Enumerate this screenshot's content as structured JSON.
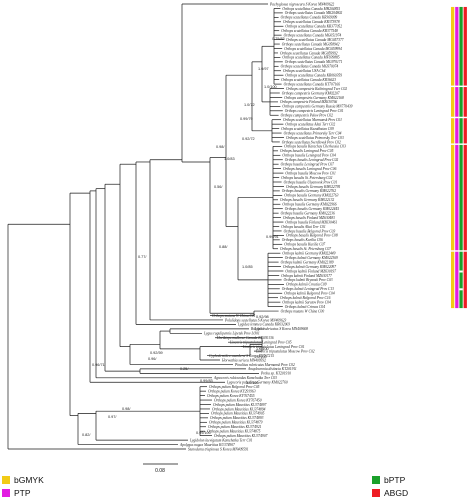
{
  "tree": {
    "tips": [
      "Pachyglossa nigroseura S Korea MN409622",
      "Orthops scutellatus Canada MH204855",
      "Orthops scutellatus Canada MK204802",
      "Orthops scutellatus Canada KR369099",
      "Orthops scutellatus Canada KR373978",
      "Orthops scutellatus Canada KR377052",
      "Orthops scutellatus Canada KR377548",
      "Orthops scutellatus Canada MG051974",
      "Orthops scutellatus Canada MG057377",
      "Orthops scutellatus Canada MG058942",
      "Orthops scutellatus Canada MG059994",
      "Orthops scutellatus Canada MG059992",
      "Orthops scutellatus Canada MF939885",
      "Orthops scutellatus Canada MG970171",
      "Orthops scutellatus Canada MG970074",
      "Orthops scutellatus USA Ch4",
      "Orthops scutellatus Canada KR060359",
      "Orthops scutellatus Canada KR36623",
      "Orthops scutellatus Canada KT707166",
      "Orthops campestris Kaliningrad Tver C02",
      "Orthops campestris Germany KM02207",
      "Orthops campestris Germany KM022168",
      "Orthops campestris Finland MZ630766",
      "Orthops campestris Germany Russia MN770439",
      "Orthops campestris Leningrad Prov C01",
      "Orthops campestris Pskov Prov C02",
      "Orthops scutellatus Murmansk Prov C01",
      "Orthops scutellatus Altai Terr C02",
      "Orthops scutellatus Kazakhstan C09",
      "Orthops scutellatus Primorsky Terr C04",
      "Orthops scutellatus Primorsky Terr C03",
      "Orthops scutellatus Sverdlovsk Prov C02",
      "Orthops basalis Karachay Cherkessia C03",
      "Orthops basalis Leningrad Prov C05",
      "Orthops basalis Leningrad Prov C04",
      "Orthops basalis Leningrad Prov C02",
      "Orthops basalis Leningrad Prov C07",
      "Orthops basalis Leningrad Prov C06",
      "Orthops basalis Moscow Prov C01",
      "Orthops basalis St. Petersburg C02",
      "Orthops basalis Ulyanovsk Prov C01",
      "Orthops basalis Germany KM022795",
      "Orthops basalis Germany KM022762",
      "Orthops basalis Germany KM022763",
      "Orthops basalis Germany KM022132",
      "Orthops basalis Germany KM022966",
      "Orthops basalis Germany KM022445",
      "Orthops basalis Germany KM022236",
      "Orthops basalis Finland MZ630483",
      "Orthops basalis Finland MZ630461",
      "Orthops basalis Altai Terr C01",
      "Orthops basalis Belgorod Prov C03",
      "Orthops basalis Belgorod Prov C08",
      "Orthops basalis Kurilia C06",
      "Orthops basalis Kurilia C07",
      "Orthops basalis St. Petersburg C07",
      "Orthops kalmii Germany KM022449",
      "Orthops kalmii Germany KM022369",
      "Orthops kalmii Germany KM022189",
      "Orthops kalmii Germany KM022097",
      "Orthops kalmii Finland MZ630197",
      "Orthops kalmii Finland MZ630177",
      "Orthops kalmii Bryansk Prov C03",
      "Orthops kalmii Croatia C09",
      "Orthops kalmii Leningrad Prov C13",
      "Orthops kalmii Belgorod Prov C04",
      "Orthops kalmii Belgorod Prov C16",
      "Orthops kalmii Saratov Prov C04",
      "Orthops kalmii Crimea C04",
      "Orthops mutans W China C00",
      "Orthops mutans W China C01",
      "Polulidops scutellatus S Korea MN409623",
      "Lygidea lemmea Canada KR032003",
      "Bolygus rubricatus S Korea MN409608",
      "Lygus rugulipennis Lipetsk Prov LO01",
      "Horikiops mullerae Canada KR030136",
      "Liocoris tripustulatus Leningrad Prov C05",
      "Liocoris tripustulatus Leningrad Prov C01",
      "Liocoris tripustulatus Moscow Prov C02",
      "Cyphodemidea saundersi S Korea KY767215",
      "Horwathia sericea MN409592",
      "Pinalitus rubricatus Murmansk Prov C02",
      "Anapleuronia distincta KT201911",
      "Proba sp. KT201910",
      "Agnocoris rubicundus Kamchatka Terr C03",
      "Lygocoris pabulinus Germany KM022760",
      "Orthops pulum Belgorod Prov C05",
      "Orthops pulum Korea KY291963",
      "Orthops pulum Korea KY767455",
      "Orthops pulum Korea KY767450",
      "Orthops pulum Mauritius KU374897",
      "Orthops pulum Mauritius KU374894",
      "Orthops pulum Mauritius KU374905",
      "Orthops pulum Mauritius KU374893",
      "Orthops pulum Mauritius KU374879",
      "Orthops pulum Mauritius KU374921",
      "Orthops pulum Mauritius KU374875",
      "Orthops pulum Mauritius KU374907",
      "Lygidolon laevigatum Kamchatka Terr C01",
      "Apolygus nugax Mauritius KU374907",
      "Stenodema trispinosa S Korea MN409591"
    ],
    "supports": [
      "0.75/83",
      "1.0/97",
      "1.0/100",
      "1.0/72",
      "0.99/79",
      "0.92/72",
      "0.98/",
      "1.0/83",
      "0.56/",
      "0.99/91",
      "1.0/85",
      "0.88/",
      "0.92/98",
      "1.0/94",
      "1.0/100",
      "0.77/",
      "0.92/59",
      "0.25/",
      "1.0/100",
      "0.99/83",
      "1.0/100",
      "0.96/",
      "0.96/71",
      "0.98/",
      "0.97/",
      "0.82/",
      "0.99/100"
    ]
  },
  "scale": {
    "label": "0.08"
  },
  "legend": {
    "items": [
      {
        "label": "bGMYK",
        "color": "#f2cb16"
      },
      {
        "label": "bPTP",
        "color": "#1aa02a"
      },
      {
        "label": "PTP",
        "color": "#e21ce2"
      },
      {
        "label": "ABGD",
        "color": "#ee1c24"
      }
    ]
  },
  "colors": {
    "bGMYK": "#f2cb16",
    "bPTP": "#1aa02a",
    "PTP": "#e21ce2",
    "ABGD": "#ee1c24",
    "branch": "#1a1a1a"
  }
}
